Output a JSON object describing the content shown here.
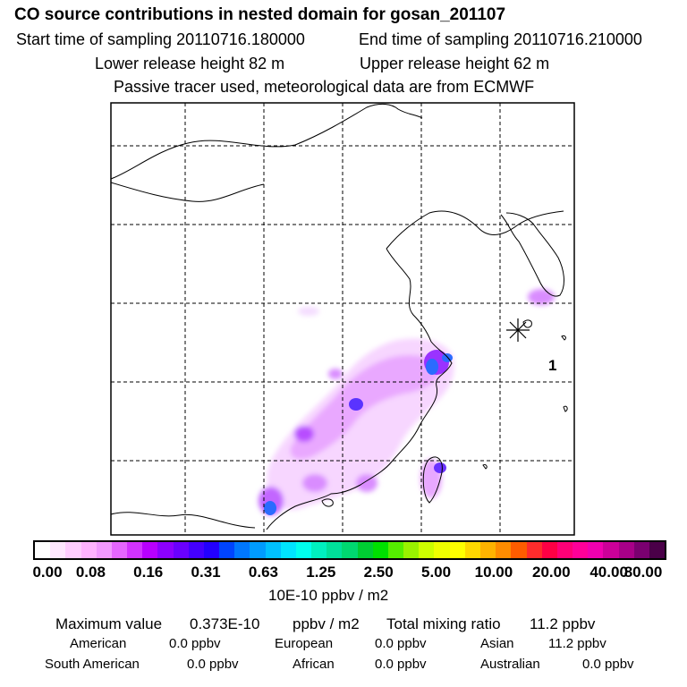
{
  "header": {
    "title": "CO  source contributions in nested domain for gosan_201107",
    "start_label": "Start time of sampling 20110716.180000",
    "end_label": "End time of sampling 20110716.210000",
    "lower_label": "Lower release height   82 m",
    "upper_label": "Upper release height   62 m",
    "passive_label": "Passive tracer used, meteorological data are from ECMWF"
  },
  "map": {
    "receptor_label": "1",
    "grid": "dashed"
  },
  "colorbar": {
    "colors": [
      "#ffffff",
      "#ffe6ff",
      "#ffccff",
      "#ffb3ff",
      "#f299ff",
      "#e566ff",
      "#d233ff",
      "#b800ff",
      "#8c00ff",
      "#6a00ff",
      "#4400ff",
      "#2300ff",
      "#0044ff",
      "#0077ff",
      "#009bff",
      "#00c0ff",
      "#00e4ff",
      "#00ffee",
      "#00f0c0",
      "#00e09a",
      "#00d870",
      "#00cc33",
      "#00e000",
      "#55ee00",
      "#99f200",
      "#ccff00",
      "#eeff00",
      "#ffff00",
      "#ffd800",
      "#ffb300",
      "#ff8c00",
      "#ff5c00",
      "#ff2c2c",
      "#ff0044",
      "#ff0077",
      "#ff0099",
      "#f000b0",
      "#cc0099",
      "#a80088",
      "#7a0070",
      "#4a0048"
    ],
    "tick_labels": [
      "0.00",
      "0.08",
      "0.16",
      "0.31",
      "0.63",
      "1.25",
      "2.50",
      "5.00",
      "10.00",
      "20.00",
      "40.00",
      "80.00"
    ],
    "units": "10E-10 ppbv / m2"
  },
  "summary": {
    "max_label": "Maximum value",
    "max_value": "0.373E-10",
    "max_unit": "ppbv / m2",
    "total_label": "Total mixing ratio",
    "total_value": "11.2 ppbv"
  },
  "regions": [
    {
      "name": "American",
      "value": "0.0 ppbv"
    },
    {
      "name": "European",
      "value": "0.0 ppbv"
    },
    {
      "name": "Asian",
      "value": "11.2 ppbv"
    },
    {
      "name": "South American",
      "value": "0.0 ppbv"
    },
    {
      "name": "African",
      "value": "0.0 ppbv"
    },
    {
      "name": "Australian",
      "value": "0.0 ppbv"
    }
  ]
}
